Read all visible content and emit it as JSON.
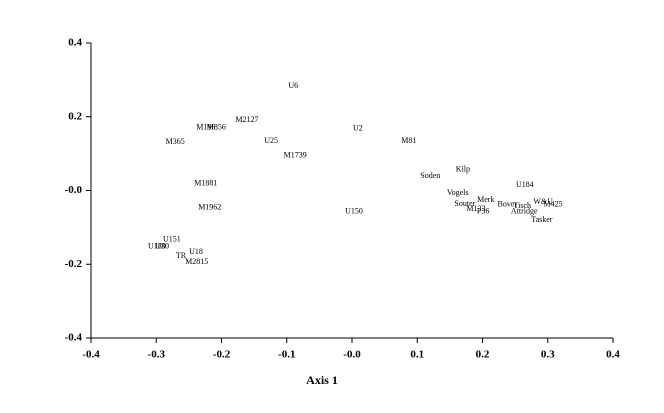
{
  "chart_data": {
    "type": "scatter",
    "xlabel": "Axis 1",
    "xlim": [
      -0.4,
      0.4
    ],
    "ylim": [
      -0.4,
      0.4
    ],
    "xticks": [
      -0.4,
      -0.3,
      -0.2,
      -0.1,
      {
        "value": 0,
        "label": "-0.0"
      },
      0.1,
      0.2,
      0.3,
      0.4
    ],
    "yticks": [
      -0.4,
      -0.2,
      {
        "value": 0,
        "label": "-0.0"
      },
      0.2,
      0.4
    ],
    "color": "#000000",
    "points": [
      {
        "label": "U6",
        "x": -0.09,
        "y": 0.283
      },
      {
        "label": "M2127",
        "x": -0.161,
        "y": 0.191
      },
      {
        "label": "M196",
        "x": -0.224,
        "y": 0.17
      },
      {
        "label": "M856",
        "x": -0.208,
        "y": 0.17
      },
      {
        "label": "M365",
        "x": -0.271,
        "y": 0.131
      },
      {
        "label": "U25",
        "x": -0.124,
        "y": 0.134
      },
      {
        "label": "U2",
        "x": 0.009,
        "y": 0.167
      },
      {
        "label": "M81",
        "x": 0.087,
        "y": 0.134
      },
      {
        "label": "M1739",
        "x": -0.087,
        "y": 0.094
      },
      {
        "label": "Kilp",
        "x": 0.17,
        "y": 0.056
      },
      {
        "label": "Soden",
        "x": 0.12,
        "y": 0.039
      },
      {
        "label": "U184",
        "x": 0.265,
        "y": 0.015
      },
      {
        "label": "M1881",
        "x": -0.224,
        "y": 0.018
      },
      {
        "label": "Vogels",
        "x": 0.162,
        "y": -0.007
      },
      {
        "label": "Merk",
        "x": 0.205,
        "y": -0.026
      },
      {
        "label": "W&U",
        "x": 0.293,
        "y": -0.031
      },
      {
        "label": "M425",
        "x": 0.308,
        "y": -0.039
      },
      {
        "label": "Souter",
        "x": 0.173,
        "y": -0.037
      },
      {
        "label": "Bover",
        "x": 0.238,
        "y": -0.039
      },
      {
        "label": "Tisch",
        "x": 0.261,
        "y": -0.042
      },
      {
        "label": "M133",
        "x": 0.19,
        "y": -0.05
      },
      {
        "label": "P36",
        "x": 0.201,
        "y": -0.058
      },
      {
        "label": "Attridge",
        "x": 0.264,
        "y": -0.058
      },
      {
        "label": "Tasker",
        "x": 0.291,
        "y": -0.08
      },
      {
        "label": "M1962",
        "x": -0.218,
        "y": -0.047
      },
      {
        "label": "U150",
        "x": 0.003,
        "y": -0.058
      },
      {
        "label": "U151",
        "x": -0.276,
        "y": -0.134
      },
      {
        "label": "U180",
        "x": -0.299,
        "y": -0.153
      },
      {
        "label": "U30",
        "x": -0.291,
        "y": -0.153
      },
      {
        "label": "U18",
        "x": -0.239,
        "y": -0.167
      },
      {
        "label": "TR",
        "x": -0.262,
        "y": -0.178
      },
      {
        "label": "M2815",
        "x": -0.238,
        "y": -0.194
      }
    ]
  }
}
